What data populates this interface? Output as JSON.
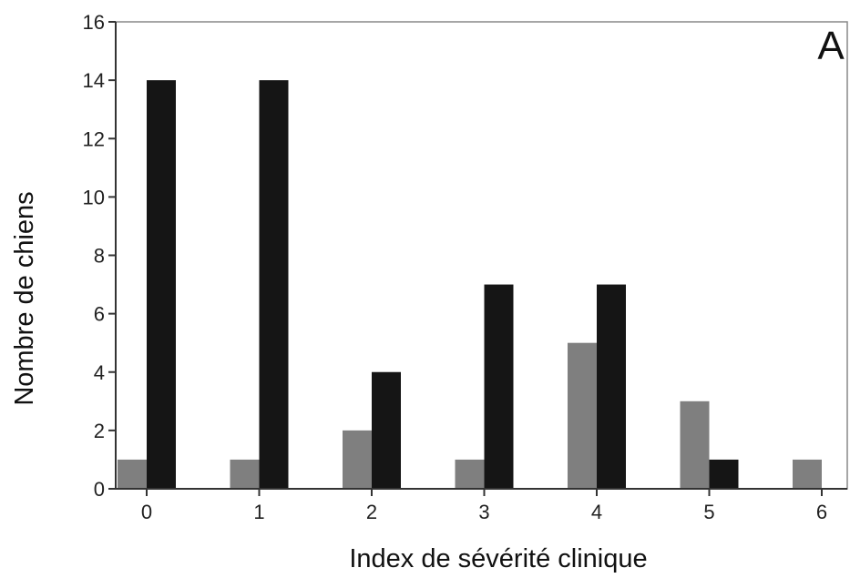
{
  "chart_data": {
    "type": "bar",
    "panel_label": "A",
    "categories": [
      "0",
      "1",
      "2",
      "3",
      "4",
      "5",
      "6"
    ],
    "series": [
      {
        "color": "#7f7f7f",
        "values": [
          1,
          1,
          2,
          1,
          5,
          3,
          1
        ]
      },
      {
        "color": "#151515",
        "values": [
          14,
          14,
          4,
          7,
          7,
          1,
          0
        ]
      }
    ],
    "xlabel": "Index de sévérité clinique",
    "ylabel": "Nombre de chiens",
    "ylim": [
      0,
      16
    ],
    "yticks": [
      "0",
      "2",
      "4",
      "6",
      "8",
      "10",
      "12",
      "14",
      "16"
    ],
    "grid": false,
    "legend": "none"
  }
}
